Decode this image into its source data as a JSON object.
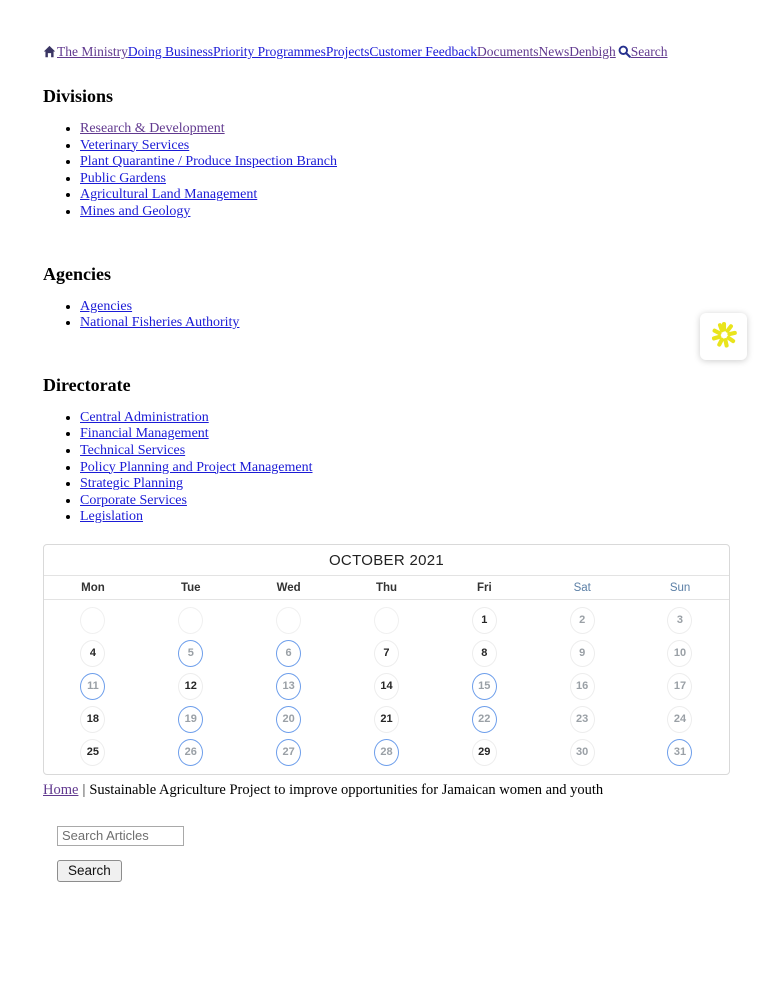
{
  "nav": {
    "links": [
      {
        "label": "The Ministry",
        "state": "visited"
      },
      {
        "label": "Doing Business",
        "state": "unvisited"
      },
      {
        "label": "Priority Programmes",
        "state": "unvisited"
      },
      {
        "label": "Projects",
        "state": "unvisited"
      },
      {
        "label": "Customer Feedback",
        "state": "unvisited"
      },
      {
        "label": "Documents",
        "state": "visited"
      },
      {
        "label": "News",
        "state": "visited"
      },
      {
        "label": "Denbigh",
        "state": "visited"
      }
    ],
    "search_label": "Search"
  },
  "sections": [
    {
      "title": "Divisions",
      "links": [
        {
          "label": "Research & Development",
          "state": "visited"
        },
        {
          "label": "Veterinary Services",
          "state": "unvisited"
        },
        {
          "label": "Plant Quarantine / Produce Inspection Branch",
          "state": "unvisited"
        },
        {
          "label": "Public Gardens",
          "state": "unvisited"
        },
        {
          "label": "Agricultural Land Management",
          "state": "unvisited"
        },
        {
          "label": "Mines and Geology",
          "state": "unvisited"
        }
      ]
    },
    {
      "title": "Agencies",
      "links": [
        {
          "label": "Agencies",
          "state": "unvisited"
        },
        {
          "label": "National Fisheries Authority",
          "state": "unvisited"
        }
      ]
    },
    {
      "title": "Directorate",
      "links": [
        {
          "label": "Central Administration",
          "state": "unvisited"
        },
        {
          "label": "Financial Management",
          "state": "unvisited"
        },
        {
          "label": "Technical Services",
          "state": "unvisited"
        },
        {
          "label": "Policy Planning and Project Management",
          "state": "unvisited"
        },
        {
          "label": "Strategic Planning",
          "state": "unvisited"
        },
        {
          "label": "Corporate Services",
          "state": "unvisited"
        },
        {
          "label": "Legislation",
          "state": "unvisited"
        }
      ]
    }
  ],
  "calendar": {
    "title": "OCTOBER 2021",
    "day_headers": [
      "Mon",
      "Tue",
      "Wed",
      "Thu",
      "Fri",
      "Sat",
      "Sun"
    ],
    "leading_blank_cells": 4,
    "days_in_month": 31,
    "event_days": [
      5,
      6,
      11,
      13,
      15,
      19,
      20,
      22,
      26,
      27,
      28,
      31
    ]
  },
  "breadcrumb": {
    "home_label": "Home",
    "separator": "|",
    "page_title": "Sustainable Agriculture Project to improve opportunities for Jamaican women and youth"
  },
  "article_search": {
    "placeholder": "Search Articles",
    "button_label": "Search"
  },
  "colors": {
    "link_unvisited": "#1b1bd6",
    "link_visited": "#61398f",
    "event_ring": "#6d9eeb",
    "strong_day_number": "#262626",
    "muted_day_number": "#9aa0a6",
    "weekend_header": "#5b7fa6",
    "accessibility_icon": "#e9e41c"
  }
}
